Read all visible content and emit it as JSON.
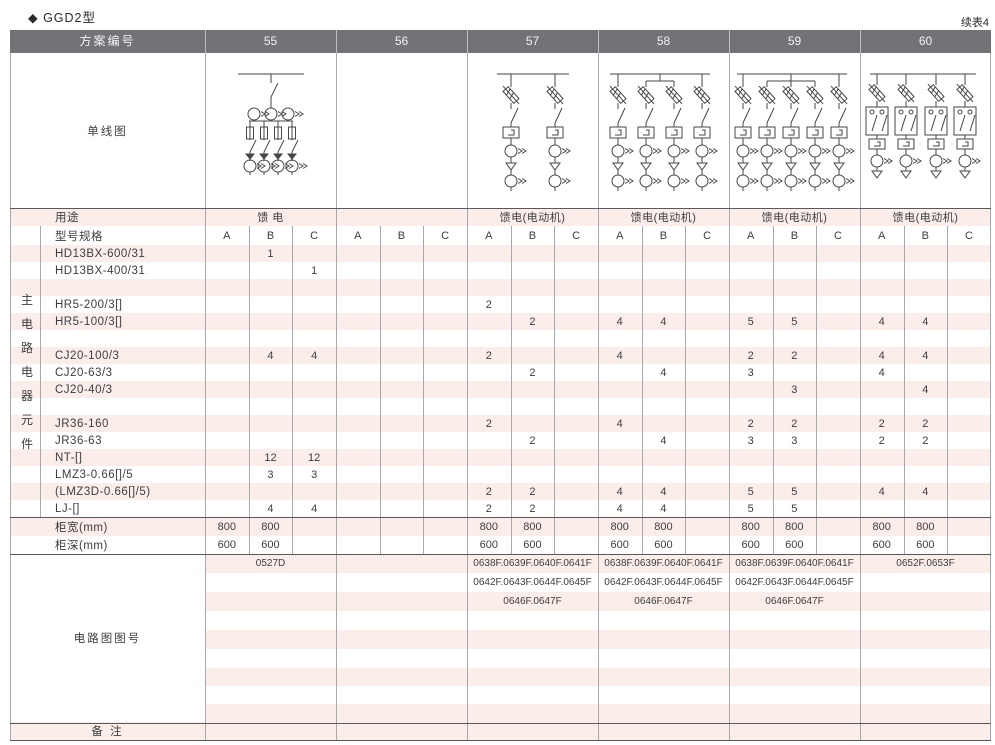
{
  "page": {
    "title": "◆ GGD2型",
    "continuation": "续表4"
  },
  "colors": {
    "header_bg": "#717376",
    "stripe_pink": "#fbeeea",
    "line_dark": "#59595b",
    "line_light": "#a8a8aa",
    "header_separator": "rgba(255,255,255,0.55)",
    "diagram_stroke": "#46464a",
    "text": "#3d3d3f"
  },
  "header": {
    "label": "方案编号",
    "schemes": [
      "55",
      "56",
      "57",
      "58",
      "59",
      "60"
    ]
  },
  "diagram_row": {
    "label": "单线图",
    "diagrams": [
      {
        "scheme": "55",
        "name": "single-line-diagram-feeder-4-branch",
        "kind": "feeder",
        "branches": 4
      },
      {
        "scheme": "56",
        "name": "single-line-diagram-empty",
        "kind": "none",
        "branches": 0
      },
      {
        "scheme": "57",
        "name": "single-line-diagram-motor-2-branch",
        "kind": "motor",
        "branches": 2
      },
      {
        "scheme": "58",
        "name": "single-line-diagram-motor-4-branch",
        "kind": "motor",
        "branches": 4
      },
      {
        "scheme": "59",
        "name": "single-line-diagram-motor-5-branch",
        "kind": "motor",
        "branches": 5
      },
      {
        "scheme": "60",
        "name": "single-line-diagram-motor-reversing-4-branch",
        "kind": "motor2",
        "branches": 4
      }
    ]
  },
  "usage_row": {
    "label": "用途",
    "values": [
      "馈 电",
      "",
      "馈电(电动机)",
      "馈电(电动机)",
      "馈电(电动机)",
      "馈电(电动机)"
    ]
  },
  "spec_row": {
    "label": "型号规格",
    "subcols": [
      "A",
      "B",
      "C"
    ]
  },
  "side_label": "主电路电器元件",
  "component_rows": [
    {
      "label": "HD13BX-600/31",
      "values": [
        "",
        "1",
        "",
        "",
        "",
        "",
        "",
        "",
        "",
        "",
        "",
        "",
        "",
        "",
        "",
        "",
        "",
        ""
      ]
    },
    {
      "label": "HD13BX-400/31",
      "values": [
        "",
        "",
        "1",
        "",
        "",
        "",
        "",
        "",
        "",
        "",
        "",
        "",
        "",
        "",
        "",
        "",
        "",
        ""
      ]
    },
    {
      "label": "",
      "values": [
        "",
        "",
        "",
        "",
        "",
        "",
        "",
        "",
        "",
        "",
        "",
        "",
        "",
        "",
        "",
        "",
        "",
        ""
      ]
    },
    {
      "label": "HR5-200/3[]",
      "values": [
        "",
        "",
        "",
        "",
        "",
        "",
        "2",
        "",
        "",
        "",
        "",
        "",
        "",
        "",
        "",
        "",
        "",
        ""
      ]
    },
    {
      "label": "HR5-100/3[]",
      "values": [
        "",
        "",
        "",
        "",
        "",
        "",
        "",
        "2",
        "",
        "4",
        "4",
        "",
        "5",
        "5",
        "",
        "4",
        "4",
        ""
      ]
    },
    {
      "label": "",
      "values": [
        "",
        "",
        "",
        "",
        "",
        "",
        "",
        "",
        "",
        "",
        "",
        "",
        "",
        "",
        "",
        "",
        "",
        ""
      ]
    },
    {
      "label": "CJ20-100/3",
      "values": [
        "",
        "4",
        "4",
        "",
        "",
        "",
        "2",
        "",
        "",
        "4",
        "",
        "",
        "2",
        "2",
        "",
        "4",
        "4",
        ""
      ]
    },
    {
      "label": "CJ20-63/3",
      "values": [
        "",
        "",
        "",
        "",
        "",
        "",
        "",
        "2",
        "",
        "",
        "4",
        "",
        "3",
        "",
        "",
        "4",
        "",
        ""
      ]
    },
    {
      "label": "CJ20-40/3",
      "values": [
        "",
        "",
        "",
        "",
        "",
        "",
        "",
        "",
        "",
        "",
        "",
        "",
        "",
        "3",
        "",
        "",
        "4",
        ""
      ]
    },
    {
      "label": "",
      "values": [
        "",
        "",
        "",
        "",
        "",
        "",
        "",
        "",
        "",
        "",
        "",
        "",
        "",
        "",
        "",
        "",
        "",
        ""
      ]
    },
    {
      "label": "JR36-160",
      "values": [
        "",
        "",
        "",
        "",
        "",
        "",
        "2",
        "",
        "",
        "4",
        "",
        "",
        "2",
        "2",
        "",
        "2",
        "2",
        ""
      ]
    },
    {
      "label": "JR36-63",
      "values": [
        "",
        "",
        "",
        "",
        "",
        "",
        "",
        "2",
        "",
        "",
        "4",
        "",
        "3",
        "3",
        "",
        "2",
        "2",
        ""
      ]
    },
    {
      "label": "NT-[]",
      "values": [
        "",
        "12",
        "12",
        "",
        "",
        "",
        "",
        "",
        "",
        "",
        "",
        "",
        "",
        "",
        "",
        "",
        "",
        ""
      ]
    },
    {
      "label": "LMZ3-0.66[]/5",
      "values": [
        "",
        "3",
        "3",
        "",
        "",
        "",
        "",
        "",
        "",
        "",
        "",
        "",
        "",
        "",
        "",
        "",
        "",
        ""
      ]
    },
    {
      "label": "(LMZ3D-0.66[]/5)",
      "values": [
        "",
        "",
        "",
        "",
        "",
        "",
        "2",
        "2",
        "",
        "4",
        "4",
        "",
        "5",
        "5",
        "",
        "4",
        "4",
        ""
      ]
    },
    {
      "label": "LJ-[]",
      "values": [
        "",
        "4",
        "4",
        "",
        "",
        "",
        "2",
        "2",
        "",
        "4",
        "4",
        "",
        "5",
        "5",
        "",
        "",
        "",
        ""
      ]
    }
  ],
  "width_row": {
    "label": "柜宽(mm)",
    "values": [
      "800",
      "800",
      "",
      "",
      "",
      "",
      "800",
      "800",
      "",
      "800",
      "800",
      "",
      "800",
      "800",
      "",
      "800",
      "800",
      ""
    ]
  },
  "depth_row": {
    "label": "柜深(mm)",
    "values": [
      "600",
      "600",
      "",
      "",
      "",
      "",
      "600",
      "600",
      "",
      "600",
      "600",
      "",
      "600",
      "600",
      "",
      "600",
      "600",
      ""
    ]
  },
  "figure_section": {
    "label": "电路图图号",
    "rows": [
      [
        "0527D",
        "",
        "0638F.0639F.0640F.0641F",
        "0638F.0639F.0640F.0641F",
        "0638F.0639F.0640F.0641F",
        "0652F.0653F"
      ],
      [
        "",
        "",
        "0642F.0643F.0644F.0645F",
        "0642F.0643F.0644F.0645F",
        "0642F.0643F.0644F.0645F",
        ""
      ],
      [
        "",
        "",
        "0646F.0647F",
        "0646F.0647F",
        "0646F.0647F",
        ""
      ],
      [
        "",
        "",
        "",
        "",
        "",
        ""
      ],
      [
        "",
        "",
        "",
        "",
        "",
        ""
      ],
      [
        "",
        "",
        "",
        "",
        "",
        ""
      ],
      [
        "",
        "",
        "",
        "",
        "",
        ""
      ],
      [
        "",
        "",
        "",
        "",
        "",
        ""
      ],
      [
        "",
        "",
        "",
        "",
        "",
        ""
      ]
    ]
  },
  "remark_row": {
    "label": "备 注",
    "values": [
      "",
      "",
      "",
      "",
      "",
      ""
    ]
  }
}
